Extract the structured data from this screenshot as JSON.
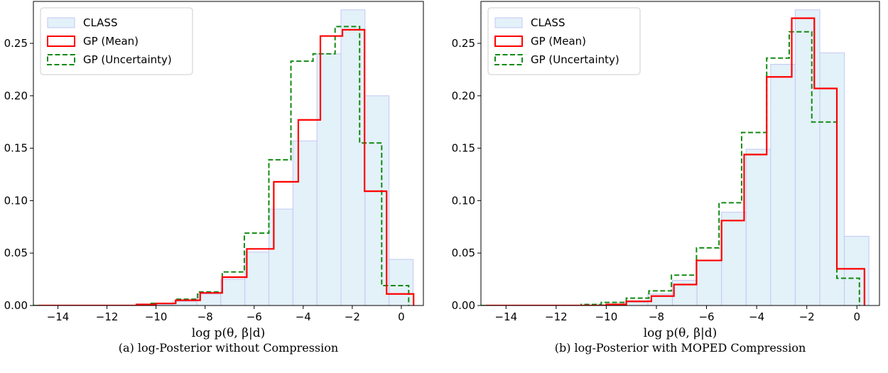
{
  "chart_data": [
    {
      "type": "bar",
      "caption": "(a) log-Posterior without Compression",
      "xlabel": "log p(θ, β|d)",
      "ylabel": "",
      "xlim": [
        -15,
        0.9
      ],
      "ylim": [
        0,
        0.29
      ],
      "xticks": [
        -14,
        -12,
        -10,
        -8,
        -6,
        -4,
        -2,
        0
      ],
      "xtick_labels": [
        "−14",
        "−12",
        "−10",
        "−8",
        "−6",
        "−4",
        "−2",
        "0"
      ],
      "yticks": [
        0,
        0.05,
        0.1,
        0.15,
        0.2,
        0.25
      ],
      "ytick_labels": [
        "0.00",
        "0.05",
        "0.10",
        "0.15",
        "0.20",
        "0.25"
      ],
      "legend_position": "top-left",
      "series": [
        {
          "name": "CLASS",
          "style": "filled histogram",
          "edges": [
            -15.2,
            -14.22,
            -13.24,
            -12.26,
            -11.28,
            -10.3,
            -9.32,
            -8.34,
            -7.36,
            -6.38,
            -5.4,
            -4.42,
            -3.44,
            -2.46,
            -1.48,
            -0.5,
            0.48
          ],
          "values": [
            0.0,
            0.0,
            0.0,
            0.0,
            0.0,
            0.001,
            0.004,
            0.011,
            0.025,
            0.051,
            0.092,
            0.157,
            0.24,
            0.282,
            0.2,
            0.044
          ]
        },
        {
          "name": "GP (Mean)",
          "style": "step",
          "edges": [
            -14.8,
            -13.8,
            -12.8,
            -11.8,
            -10.8,
            -10.0,
            -9.2,
            -8.2,
            -7.3,
            -6.3,
            -5.2,
            -4.2,
            -3.3,
            -2.4,
            -1.5,
            -0.6,
            0.5
          ],
          "values": [
            0.0,
            0.0,
            0.0,
            0.0,
            0.001,
            0.002,
            0.005,
            0.012,
            0.027,
            0.054,
            0.118,
            0.177,
            0.257,
            0.263,
            0.109,
            0.011
          ]
        },
        {
          "name": "GP (Uncertainty)",
          "style": "dashed step",
          "edges": [
            -15.0,
            -14.0,
            -13.0,
            -12.0,
            -11.0,
            -10.2,
            -9.2,
            -8.3,
            -7.3,
            -6.4,
            -5.4,
            -4.5,
            -3.6,
            -2.7,
            -1.7,
            -0.8,
            0.3
          ],
          "values": [
            0.0,
            0.0,
            0.0,
            0.0,
            0.0,
            0.002,
            0.006,
            0.013,
            0.032,
            0.069,
            0.139,
            0.233,
            0.24,
            0.266,
            0.155,
            0.019
          ]
        }
      ],
      "colors": {
        "class_fill": "#e3f1f9",
        "class_edge": "#c3c8f4",
        "gp_mean": "#ff0000",
        "gp_uncertainty": "#138a13"
      }
    },
    {
      "type": "bar",
      "caption": "(b) log-Posterior with MOPED Compression",
      "xlabel": "log p(θ, β|d)",
      "ylabel": "",
      "xlim": [
        -15,
        0.9
      ],
      "ylim": [
        0,
        0.29
      ],
      "xticks": [
        -14,
        -12,
        -10,
        -8,
        -6,
        -4,
        -2,
        0
      ],
      "xtick_labels": [
        "−14",
        "−12",
        "−10",
        "−8",
        "−6",
        "−4",
        "−2",
        "0"
      ],
      "yticks": [
        0,
        0.05,
        0.1,
        0.15,
        0.2,
        0.25
      ],
      "ytick_labels": [
        "0.00",
        "0.05",
        "0.10",
        "0.15",
        "0.20",
        "0.25"
      ],
      "legend_position": "top-left",
      "series": [
        {
          "name": "CLASS",
          "style": "filled histogram",
          "edges": [
            -15.2,
            -14.22,
            -13.24,
            -12.26,
            -11.28,
            -10.3,
            -9.32,
            -8.34,
            -7.36,
            -6.38,
            -5.4,
            -4.42,
            -3.44,
            -2.46,
            -1.48,
            -0.5,
            0.48
          ],
          "values": [
            0.0,
            0.0,
            0.0,
            0.0,
            0.0,
            0.001,
            0.003,
            0.011,
            0.024,
            0.043,
            0.089,
            0.149,
            0.23,
            0.282,
            0.241,
            0.066
          ]
        },
        {
          "name": "GP (Mean)",
          "style": "step",
          "edges": [
            -14.8,
            -13.8,
            -12.8,
            -11.8,
            -10.8,
            -10.0,
            -9.2,
            -8.2,
            -7.3,
            -6.4,
            -5.4,
            -4.5,
            -3.6,
            -2.6,
            -1.7,
            -0.8,
            0.3
          ],
          "values": [
            0.0,
            0.0,
            0.0,
            0.0,
            0.0,
            0.001,
            0.004,
            0.009,
            0.02,
            0.043,
            0.081,
            0.144,
            0.218,
            0.274,
            0.207,
            0.035
          ]
        },
        {
          "name": "GP (Uncertainty)",
          "style": "dashed step",
          "edges": [
            -15.0,
            -14.0,
            -13.0,
            -12.0,
            -11.0,
            -10.2,
            -9.2,
            -8.3,
            -7.4,
            -6.4,
            -5.5,
            -4.6,
            -3.6,
            -2.7,
            -1.8,
            -0.8,
            0.1
          ],
          "values": [
            0.0,
            0.0,
            0.0,
            0.0,
            0.001,
            0.003,
            0.007,
            0.014,
            0.029,
            0.055,
            0.098,
            0.165,
            0.236,
            0.261,
            0.175,
            0.026
          ]
        }
      ],
      "colors": {
        "class_fill": "#e3f1f9",
        "class_edge": "#c3c8f4",
        "gp_mean": "#ff0000",
        "gp_uncertainty": "#138a13"
      }
    }
  ]
}
